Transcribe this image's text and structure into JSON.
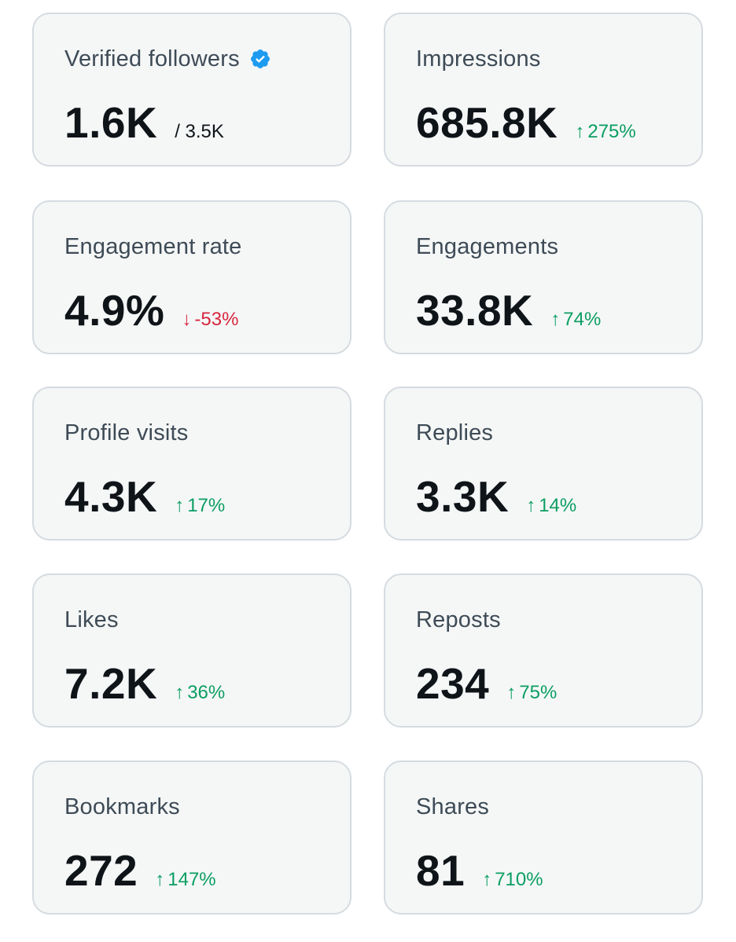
{
  "cards": [
    {
      "id": "verified-followers",
      "label": "Verified followers",
      "value": "1.6K",
      "secondary": "/ 3.5K",
      "verified_icon": "verified-badge-icon",
      "verified_color": "#1d9bf0"
    },
    {
      "id": "impressions",
      "label": "Impressions",
      "value": "685.8K",
      "change": "275%",
      "direction": "up",
      "arrow": "↑"
    },
    {
      "id": "engagement-rate",
      "label": "Engagement rate",
      "value": "4.9%",
      "change": "-53%",
      "direction": "down",
      "arrow": "↓"
    },
    {
      "id": "engagements",
      "label": "Engagements",
      "value": "33.8K",
      "change": "74%",
      "direction": "up",
      "arrow": "↑"
    },
    {
      "id": "profile-visits",
      "label": "Profile visits",
      "value": "4.3K",
      "change": "17%",
      "direction": "up",
      "arrow": "↑"
    },
    {
      "id": "replies",
      "label": "Replies",
      "value": "3.3K",
      "change": "14%",
      "direction": "up",
      "arrow": "↑"
    },
    {
      "id": "likes",
      "label": "Likes",
      "value": "7.2K",
      "change": "36%",
      "direction": "up",
      "arrow": "↑"
    },
    {
      "id": "reposts",
      "label": "Reposts",
      "value": "234",
      "change": "75%",
      "direction": "up",
      "arrow": "↑"
    },
    {
      "id": "bookmarks",
      "label": "Bookmarks",
      "value": "272",
      "change": "147%",
      "direction": "up",
      "arrow": "↑"
    },
    {
      "id": "shares",
      "label": "Shares",
      "value": "81",
      "change": "710%",
      "direction": "up",
      "arrow": "↑"
    }
  ],
  "colors": {
    "card_background": "#f5f7f7",
    "card_border": "#d5dbe0",
    "positive": "#0b9e62",
    "negative": "#d7263d"
  }
}
